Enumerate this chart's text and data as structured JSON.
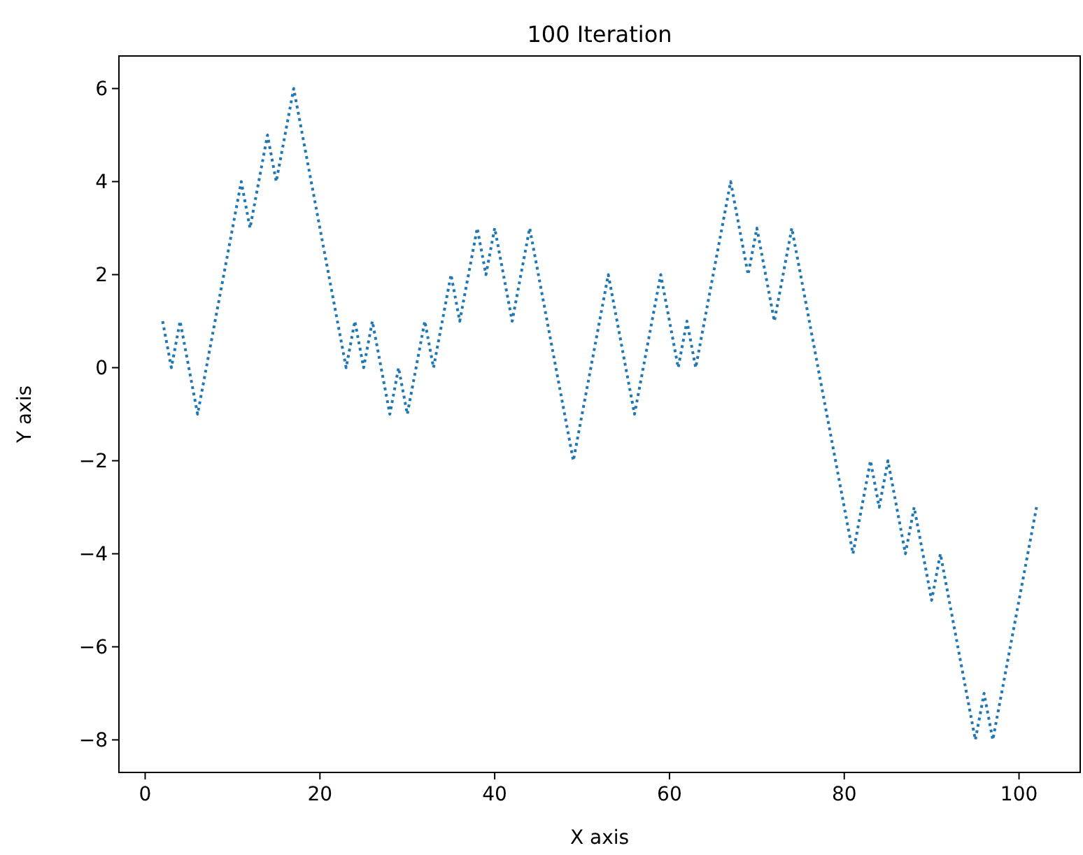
{
  "chart_data": {
    "type": "line",
    "title": "100 Iteration",
    "xlabel": "X axis",
    "ylabel": "Y axis",
    "x": [
      2,
      3,
      4,
      5,
      6,
      7,
      8,
      9,
      10,
      11,
      12,
      13,
      14,
      15,
      16,
      17,
      18,
      19,
      20,
      21,
      22,
      23,
      24,
      25,
      26,
      27,
      28,
      29,
      30,
      31,
      32,
      33,
      34,
      35,
      36,
      37,
      38,
      39,
      40,
      41,
      42,
      43,
      44,
      45,
      46,
      47,
      48,
      49,
      50,
      51,
      52,
      53,
      54,
      55,
      56,
      57,
      58,
      59,
      60,
      61,
      62,
      63,
      64,
      65,
      66,
      67,
      68,
      69,
      70,
      71,
      72,
      73,
      74,
      75,
      76,
      77,
      78,
      79,
      80,
      81,
      82,
      83,
      84,
      85,
      86,
      87,
      88,
      89,
      90,
      91,
      92,
      93,
      94,
      95,
      96,
      97,
      98,
      99,
      100,
      101,
      102
    ],
    "series": [
      {
        "color": "#1f77b4",
        "values": [
          1,
          0,
          1,
          0,
          -1,
          0,
          1,
          2,
          3,
          4,
          3,
          4,
          5,
          4,
          5,
          6,
          5,
          4,
          3,
          2,
          1,
          0,
          1,
          0,
          1,
          0,
          -1,
          0,
          -1,
          0,
          1,
          0,
          1,
          2,
          1,
          2,
          3,
          2,
          3,
          2,
          1,
          2,
          3,
          2,
          1,
          0,
          -1,
          -2,
          -1,
          0,
          1,
          2,
          1,
          0,
          -1,
          0,
          1,
          2,
          1,
          0,
          1,
          0,
          1,
          2,
          3,
          4,
          3,
          2,
          3,
          2,
          1,
          2,
          3,
          2,
          1,
          0,
          -1,
          -2,
          -3,
          -4,
          -3,
          -2,
          -3,
          -2,
          -3,
          -4,
          -3,
          -4,
          -5,
          -4,
          -5,
          -6,
          -7,
          -8,
          -7,
          -8,
          -7,
          -6,
          -5,
          -4,
          -3
        ]
      }
    ],
    "line_style": "dotted",
    "marker": "none",
    "grid": false,
    "xlim": [
      -3,
      107
    ],
    "ylim": [
      -8.7,
      6.7
    ],
    "xticks": [
      0,
      20,
      40,
      60,
      80,
      100
    ],
    "yticks": [
      -8,
      -6,
      -4,
      -2,
      0,
      2,
      4,
      6
    ]
  }
}
